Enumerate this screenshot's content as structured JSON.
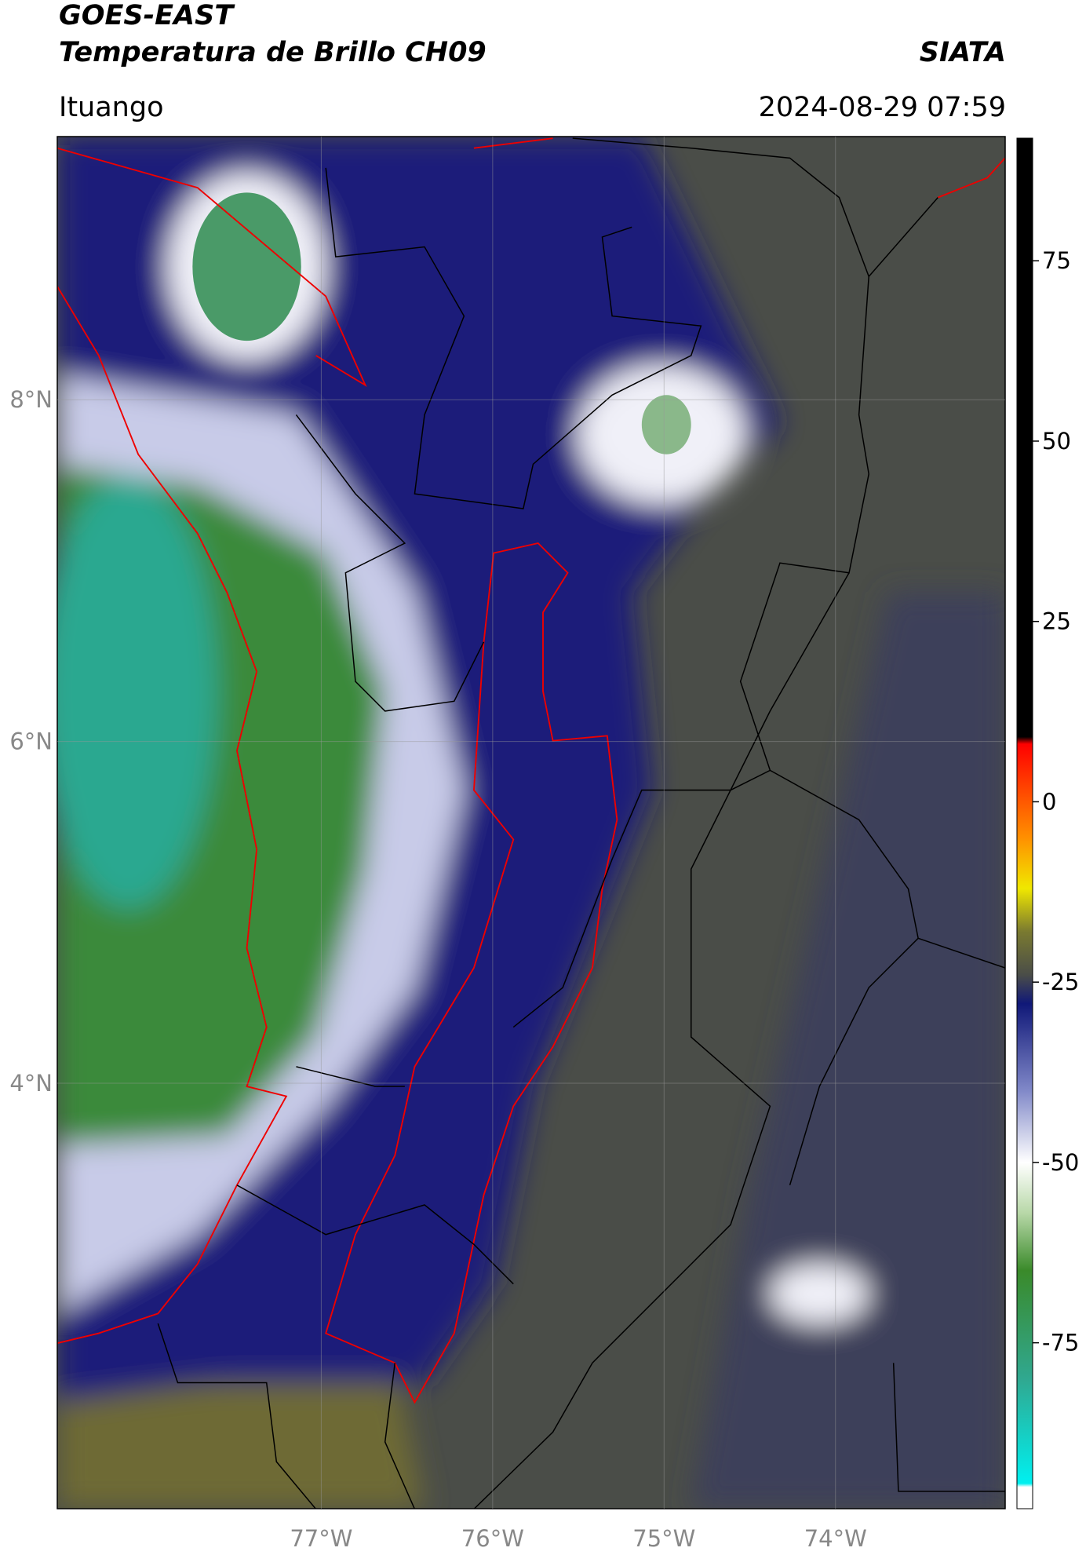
{
  "header": {
    "title": "GOES-EAST",
    "subtitle": "Temperatura de Brillo CH09",
    "source": "SIATA",
    "location": "Ituango",
    "datetime": "2024-08-29 07:59"
  },
  "map": {
    "lon_range": [
      -78.54,
      -73.01
    ],
    "lat_range": [
      1.51,
      9.54
    ],
    "lat_ticks": [
      {
        "value": 8,
        "label": "8°N"
      },
      {
        "value": 6,
        "label": "6°N"
      },
      {
        "value": 4,
        "label": "4°N"
      }
    ],
    "lon_ticks": [
      {
        "value": -77,
        "label": "77°W"
      },
      {
        "value": -76,
        "label": "76°W"
      },
      {
        "value": -75,
        "label": "75°W"
      },
      {
        "value": -74,
        "label": "74°W"
      }
    ],
    "grid": true
  },
  "colorbar": {
    "range": [
      -98,
      92
    ],
    "ticks": [
      75,
      50,
      25,
      0,
      -25,
      -50,
      -75
    ],
    "colormap": [
      {
        "value": -98,
        "color": "#ffffff"
      },
      {
        "value": -95,
        "color": "#ffffff"
      },
      {
        "value": -94.5,
        "color": "#00f0f0"
      },
      {
        "value": -80,
        "color": "#30a890"
      },
      {
        "value": -65,
        "color": "#3a8a2a"
      },
      {
        "value": -57,
        "color": "#b8d8a8"
      },
      {
        "value": -50,
        "color": "#ffffff"
      },
      {
        "value": -40,
        "color": "#8088c8"
      },
      {
        "value": -28,
        "color": "#101878"
      },
      {
        "value": -24,
        "color": "#4a4d48"
      },
      {
        "value": -18,
        "color": "#7a7a30"
      },
      {
        "value": -12,
        "color": "#f0e800"
      },
      {
        "value": -5,
        "color": "#ff9000"
      },
      {
        "value": 8,
        "color": "#ff0000"
      },
      {
        "value": 9,
        "color": "#000000"
      },
      {
        "value": 92,
        "color": "#000000"
      }
    ]
  }
}
